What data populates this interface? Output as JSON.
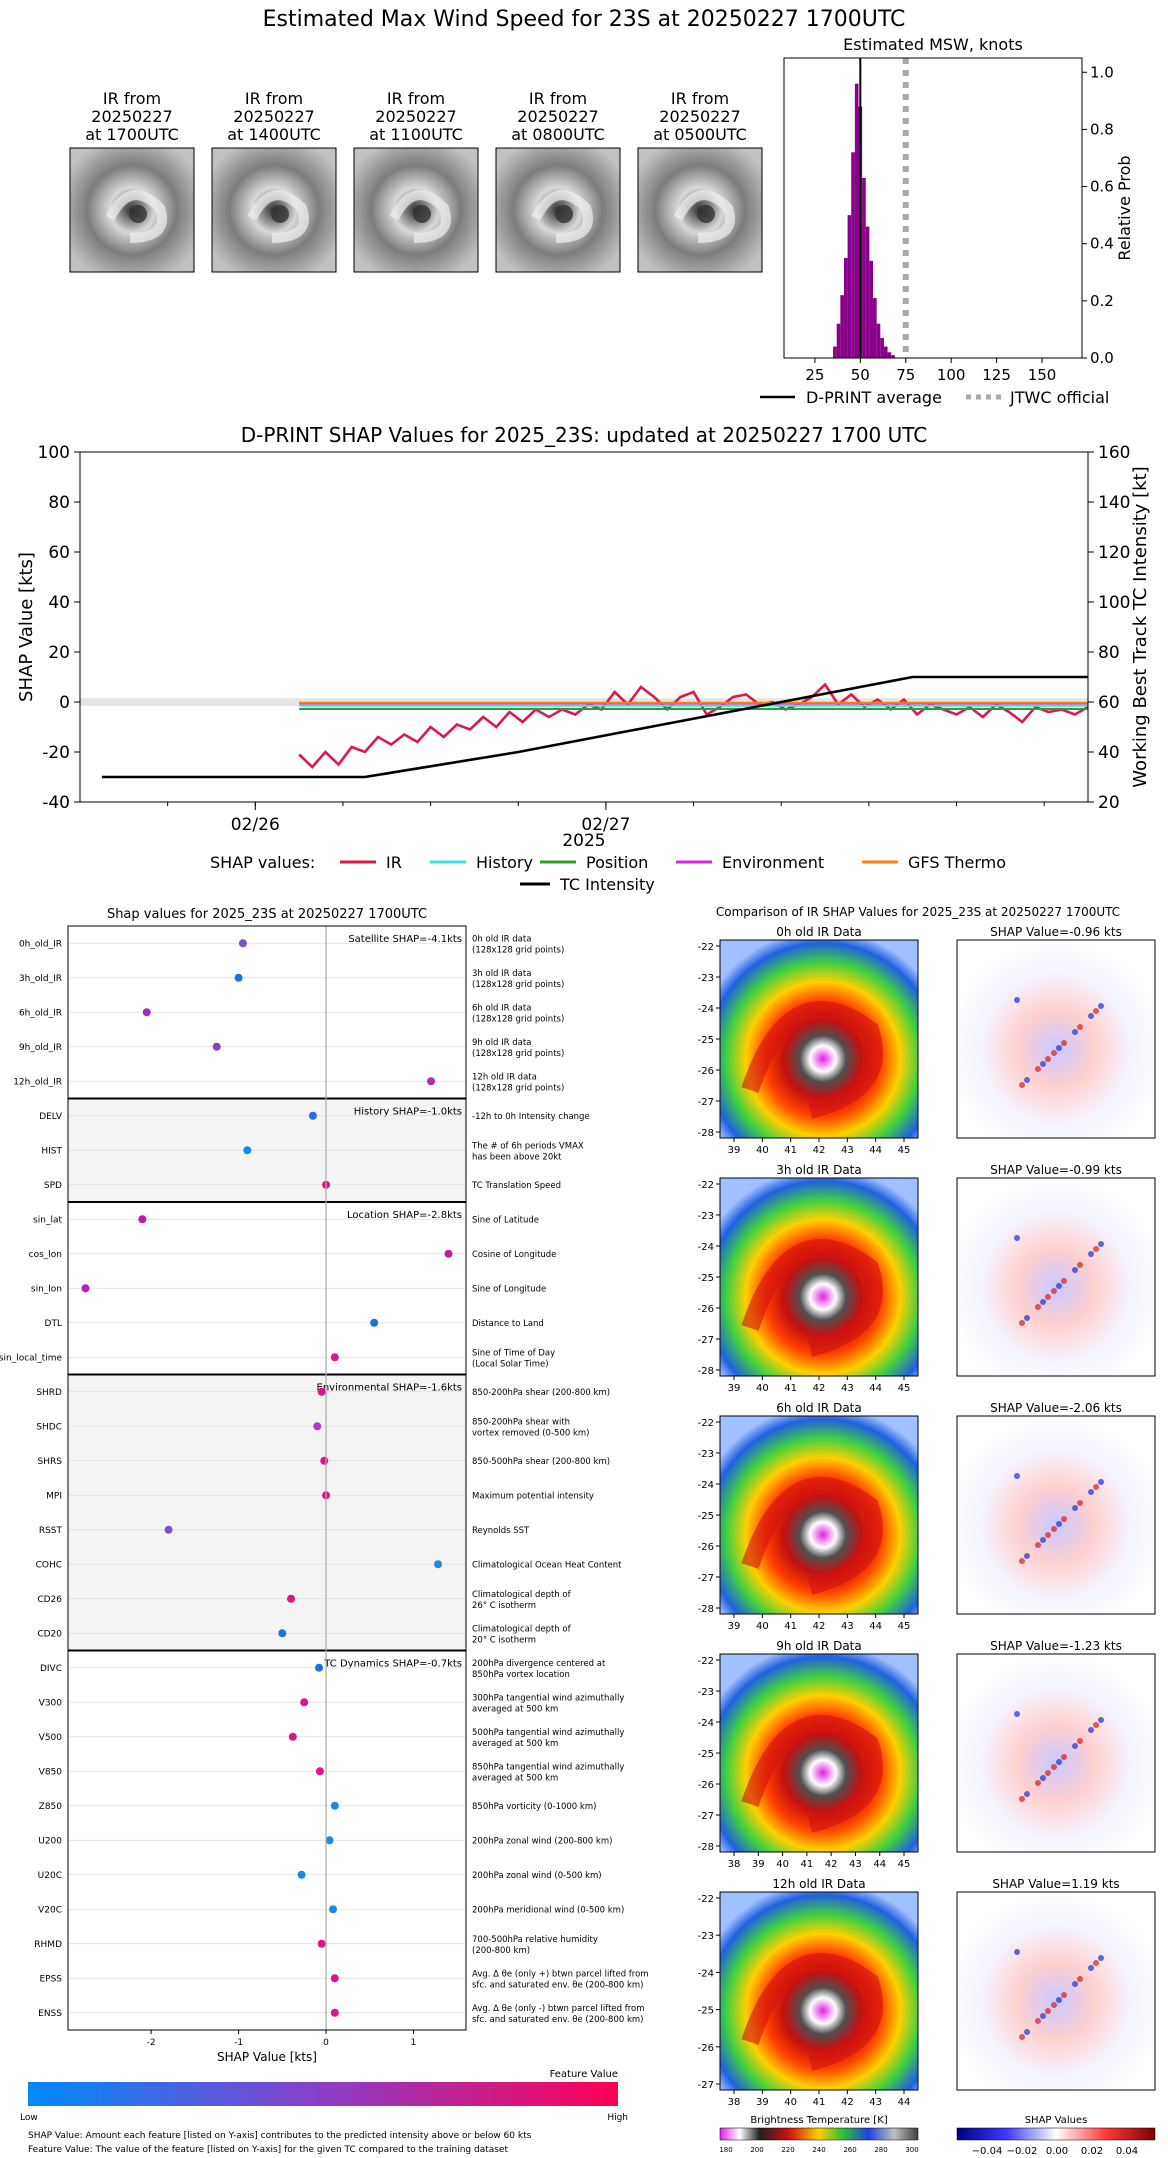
{
  "title": "Estimated Max Wind Speed for 23S at 20250227 1700UTC",
  "ir_thumbs": [
    {
      "line1": "IR from",
      "line2": "20250227",
      "line3": "at 1700UTC"
    },
    {
      "line1": "IR from",
      "line2": "20250227",
      "line3": "at 1400UTC"
    },
    {
      "line1": "IR from",
      "line2": "20250227",
      "line3": "at 1100UTC"
    },
    {
      "line1": "IR from",
      "line2": "20250227",
      "line3": "at 0800UTC"
    },
    {
      "line1": "IR from",
      "line2": "20250227",
      "line3": "at 0500UTC"
    }
  ],
  "legend_top": {
    "davg": "D-PRINT average",
    "jtwc": "JTWC official"
  },
  "shap_legend": {
    "label": "SHAP values:",
    "items": [
      {
        "name": "IR",
        "color": "#d81b4a"
      },
      {
        "name": "History",
        "color": "#40e0e0"
      },
      {
        "name": "Position",
        "color": "#2ca02c"
      },
      {
        "name": "Environment",
        "color": "#e020e0"
      },
      {
        "name": "GFS Thermo",
        "color": "#ff7f0e"
      }
    ],
    "tc": "TC Intensity"
  },
  "summary": {
    "title": "Shap values for 2025_23S at 20250227 1700UTC",
    "xlabel": "SHAP Value [kts]",
    "xticks": [
      "-2",
      "-1",
      "0",
      "1"
    ],
    "groups": [
      {
        "title": "Satellite SHAP=-4.1kts",
        "shaded": false,
        "features": [
          {
            "name": "0h_old_IR",
            "value": -0.95,
            "color": "#7b4fcf",
            "desc1": "0h old IR data",
            "desc2": "(128x128 grid points)"
          },
          {
            "name": "3h_old_IR",
            "value": -1.0,
            "color": "#1a73e0",
            "desc1": "3h old IR data",
            "desc2": "(128x128 grid points)"
          },
          {
            "name": "6h_old_IR",
            "value": -2.05,
            "color": "#9e2cc0",
            "desc1": "6h old IR data",
            "desc2": "(128x128 grid points)"
          },
          {
            "name": "9h_old_IR",
            "value": -1.25,
            "color": "#8a3fc8",
            "desc1": "9h old IR data",
            "desc2": "(128x128 grid points)"
          },
          {
            "name": "12h_old_IR",
            "value": 1.2,
            "color": "#b52ab0",
            "desc1": "12h old IR data",
            "desc2": "(128x128 grid points)"
          }
        ]
      },
      {
        "title": "History SHAP=-1.0kts",
        "shaded": true,
        "features": [
          {
            "name": "DELV",
            "value": -0.15,
            "color": "#1a73e0",
            "desc1": "-12h to 0h Intensity change",
            "desc2": ""
          },
          {
            "name": "HIST",
            "value": -0.9,
            "color": "#1a8ae8",
            "desc1": "The # of 6h periods VMAX",
            "desc2": "has been above 20kt"
          },
          {
            "name": "SPD",
            "value": 0.0,
            "color": "#e0148a",
            "desc1": "TC Translation Speed",
            "desc2": ""
          }
        ]
      },
      {
        "title": "Location SHAP=-2.8kts",
        "shaded": false,
        "features": [
          {
            "name": "sin_lat",
            "value": -2.1,
            "color": "#c01ab0",
            "desc1": "Sine of Latitude",
            "desc2": ""
          },
          {
            "name": "cos_lon",
            "value": 1.4,
            "color": "#c01ab0",
            "desc1": "Cosine of Longitude",
            "desc2": ""
          },
          {
            "name": "sin_lon",
            "value": -2.75,
            "color": "#c01ab0",
            "desc1": "Sine of Longitude",
            "desc2": ""
          },
          {
            "name": "DTL",
            "value": 0.55,
            "color": "#1a73e0",
            "desc1": "Distance to Land",
            "desc2": ""
          },
          {
            "name": "sin_local_time",
            "value": 0.1,
            "color": "#d418a0",
            "desc1": "Sine of Time of Day",
            "desc2": "(Local Solar Time)"
          }
        ]
      },
      {
        "title": "Environmental SHAP=-1.6kts",
        "shaded": true,
        "features": [
          {
            "name": "SHRD",
            "value": -0.05,
            "color": "#e0148a",
            "desc1": "850-200hPa shear (200-800 km)",
            "desc2": ""
          },
          {
            "name": "SHDC",
            "value": -0.1,
            "color": "#a83cc8",
            "desc1": "850-200hPa shear with",
            "desc2": "vortex removed (0-500 km)"
          },
          {
            "name": "SHRS",
            "value": -0.02,
            "color": "#e0148a",
            "desc1": "850-500hPa shear (200-800 km)",
            "desc2": ""
          },
          {
            "name": "MPI",
            "value": 0.0,
            "color": "#e0148a",
            "desc1": "Maximum potential intensity",
            "desc2": ""
          },
          {
            "name": "RSST",
            "value": -1.8,
            "color": "#7b4fcf",
            "desc1": "Reynolds SST",
            "desc2": ""
          },
          {
            "name": "COHC",
            "value": 1.28,
            "color": "#1a8ae8",
            "desc1": "Climatological Ocean Heat Content",
            "desc2": ""
          },
          {
            "name": "CD26",
            "value": -0.4,
            "color": "#d8187e",
            "desc1": "Climatological depth of",
            "desc2": "26° C isotherm"
          },
          {
            "name": "CD20",
            "value": -0.5,
            "color": "#1a73e0",
            "desc1": "Climatological depth of",
            "desc2": "20° C isotherm"
          }
        ]
      },
      {
        "title": "TC Dynamics SHAP=-0.7kts",
        "shaded": false,
        "features": [
          {
            "name": "DIVC",
            "value": -0.08,
            "color": "#1a73e0",
            "desc1": "200hPa divergence centered at",
            "desc2": "850hPa vortex location"
          },
          {
            "name": "V300",
            "value": -0.25,
            "color": "#e0148a",
            "desc1": "300hPa tangential wind azimuthally",
            "desc2": "averaged at 500 km"
          },
          {
            "name": "V500",
            "value": -0.38,
            "color": "#d41890",
            "desc1": "500hPa tangential wind azimuthally",
            "desc2": "averaged at 500 km"
          },
          {
            "name": "V850",
            "value": -0.07,
            "color": "#e0148a",
            "desc1": "850hPa tangential wind azimuthally",
            "desc2": "averaged at 500 km"
          },
          {
            "name": "Z850",
            "value": 0.1,
            "color": "#1a8ae8",
            "desc1": "850hPa vorticity (0-1000 km)",
            "desc2": ""
          },
          {
            "name": "U200",
            "value": 0.04,
            "color": "#1a8ae8",
            "desc1": "200hPa zonal wind (200-800 km)",
            "desc2": ""
          },
          {
            "name": "U20C",
            "value": -0.28,
            "color": "#1a8ae8",
            "desc1": "200hPa zonal wind (0-500 km)",
            "desc2": ""
          },
          {
            "name": "V20C",
            "value": 0.08,
            "color": "#1a8ae8",
            "desc1": "200hPa meridional wind (0-500 km)",
            "desc2": ""
          },
          {
            "name": "RHMD",
            "value": -0.05,
            "color": "#e0148a",
            "desc1": "700-500hPa relative humidity",
            "desc2": "(200-800 km)"
          },
          {
            "name": "EPSS",
            "value": 0.1,
            "color": "#e0148a",
            "desc1": "Avg. Δ θe (only +) btwn parcel lifted from",
            "desc2": "sfc. and saturated env. θe (200-800 km)"
          },
          {
            "name": "ENSS",
            "value": 0.1,
            "color": "#e0148a",
            "desc1": "Avg. Δ θe (only -) btwn parcel lifted from",
            "desc2": "sfc. and saturated env. θe (200-800 km)"
          }
        ]
      }
    ],
    "colorbar": {
      "title": "Feature Value",
      "low": "Low",
      "high": "High"
    },
    "footnote1": "SHAP Value: Amount each feature [listed on Y-axis] contributes to the predicted intensity above or below 60 kts",
    "footnote2": "Feature Value: The value of the feature [listed on Y-axis] for the given TC compared to the training dataset"
  },
  "comparison": {
    "title": "Comparison of IR SHAP Values for 2025_23S at 20250227 1700UTC",
    "rows": [
      {
        "ir_title": "0h old IR Data",
        "shap_title": "SHAP Value=-0.96 kts",
        "yticks": [
          "-22",
          "-23",
          "-24",
          "-25",
          "-26",
          "-27",
          "-28"
        ],
        "xticks": [
          "39",
          "40",
          "41",
          "42",
          "43",
          "44",
          "45"
        ]
      },
      {
        "ir_title": "3h old IR Data",
        "shap_title": "SHAP Value=-0.99 kts",
        "yticks": [
          "-22",
          "-23",
          "-24",
          "-25",
          "-26",
          "-27",
          "-28"
        ],
        "xticks": [
          "39",
          "40",
          "41",
          "42",
          "43",
          "44",
          "45"
        ]
      },
      {
        "ir_title": "6h old IR Data",
        "shap_title": "SHAP Value=-2.06 kts",
        "yticks": [
          "-22",
          "-23",
          "-24",
          "-25",
          "-26",
          "-27",
          "-28"
        ],
        "xticks": [
          "39",
          "40",
          "41",
          "42",
          "43",
          "44",
          "45"
        ]
      },
      {
        "ir_title": "9h old IR Data",
        "shap_title": "SHAP Value=-1.23 kts",
        "yticks": [
          "-22",
          "-23",
          "-24",
          "-25",
          "-26",
          "-27",
          "-28"
        ],
        "xticks": [
          "38",
          "39",
          "40",
          "41",
          "42",
          "43",
          "44",
          "45"
        ]
      },
      {
        "ir_title": "12h old IR Data",
        "shap_title": "SHAP Value=1.19 kts",
        "yticks": [
          "-22",
          "-23",
          "-24",
          "-25",
          "-26",
          "-27"
        ],
        "xticks": [
          "38",
          "39",
          "40",
          "41",
          "42",
          "43",
          "44"
        ]
      }
    ],
    "bt_title": "Brightness Temperature [K]",
    "bt_ticks": [
      "180",
      "200",
      "220",
      "240",
      "260",
      "280",
      "300"
    ],
    "sv_title": "SHAP Values",
    "sv_ticks": [
      "−0.04",
      "−0.02",
      "0.00",
      "0.02",
      "0.04"
    ]
  },
  "chart_data": [
    {
      "type": "bar",
      "title": "Estimated MSW, knots",
      "ylabel": "Relative Prob",
      "xticks": [
        25,
        50,
        75,
        100,
        125,
        150
      ],
      "yticks": [
        0.0,
        0.2,
        0.4,
        0.6,
        0.8,
        1.0
      ],
      "xlim": [
        8,
        172
      ],
      "ylim": [
        0,
        1.05
      ],
      "bin_width": 2,
      "bins": [
        {
          "x": 36,
          "y": 0.04
        },
        {
          "x": 38,
          "y": 0.12
        },
        {
          "x": 40,
          "y": 0.22
        },
        {
          "x": 42,
          "y": 0.35
        },
        {
          "x": 44,
          "y": 0.5
        },
        {
          "x": 46,
          "y": 0.72
        },
        {
          "x": 48,
          "y": 0.96
        },
        {
          "x": 50,
          "y": 0.88
        },
        {
          "x": 52,
          "y": 0.63
        },
        {
          "x": 54,
          "y": 0.46
        },
        {
          "x": 56,
          "y": 0.34
        },
        {
          "x": 58,
          "y": 0.21
        },
        {
          "x": 60,
          "y": 0.12
        },
        {
          "x": 62,
          "y": 0.07
        },
        {
          "x": 64,
          "y": 0.04
        },
        {
          "x": 66,
          "y": 0.02
        },
        {
          "x": 68,
          "y": 0.01
        }
      ],
      "dprint_average": 50,
      "jtwc_official": 75
    },
    {
      "type": "line",
      "title": "D-PRINT SHAP Values for 2025_23S: updated at 20250227 1700 UTC",
      "xlabel": "2025",
      "ylabel": "SHAP Value [kts]",
      "y2label": "Working Best Track TC Intensity [kt]",
      "xticks": [
        "02/26",
        "02/27"
      ],
      "xlim": [
        -2.0,
        21.0
      ],
      "ylim": [
        -40,
        100
      ],
      "y2lim": [
        20,
        160
      ],
      "yticks": [
        -40,
        -20,
        0,
        20,
        40,
        60,
        80,
        100
      ],
      "y2ticks": [
        20,
        40,
        60,
        80,
        100,
        120,
        140,
        160
      ],
      "series": [
        {
          "name": "IR",
          "x": [
            3.0,
            3.3,
            3.6,
            3.9,
            4.2,
            4.5,
            4.8,
            5.1,
            5.4,
            5.7,
            6.0,
            6.3,
            6.6,
            6.9,
            7.2,
            7.5,
            7.8,
            8.1,
            8.4,
            8.7,
            9.0,
            9.3,
            9.6,
            9.9,
            10.2,
            10.5,
            10.8,
            11.1,
            11.4,
            11.7,
            12.0,
            12.3,
            12.6,
            12.9,
            13.2,
            13.5,
            13.8,
            14.1,
            14.4,
            14.7,
            15.0,
            15.3,
            15.6,
            15.9,
            16.2,
            16.5,
            16.8,
            17.1,
            17.4,
            17.7,
            18.0,
            18.3,
            18.6,
            18.9,
            19.2,
            19.5,
            19.8,
            20.1,
            20.4,
            20.7,
            21.0
          ],
          "y": [
            -21,
            -26,
            -20,
            -25,
            -18,
            -20,
            -14,
            -17,
            -13,
            -16,
            -10,
            -14,
            -9,
            -11,
            -6,
            -10,
            -4,
            -8,
            -3,
            -6,
            -3,
            -5,
            -1,
            -3,
            4,
            -1,
            6,
            2,
            -3,
            2,
            4,
            -5,
            -2,
            2,
            3,
            -1,
            0,
            -3,
            -1,
            2,
            7,
            -1,
            3,
            -2,
            1,
            -3,
            1,
            -5,
            -1,
            -3,
            -5,
            -2,
            -6,
            -1,
            -4,
            -8,
            -2,
            -4,
            -3,
            -5,
            -2
          ]
        },
        {
          "name": "History",
          "x": [
            3,
            21
          ],
          "y": [
            -1.5,
            -1.5
          ]
        },
        {
          "name": "Position",
          "x": [
            3,
            21
          ],
          "y": [
            -2.8,
            -2.8
          ]
        },
        {
          "name": "Environment",
          "x": [
            3,
            21
          ],
          "y": [
            -0.6,
            -0.6
          ]
        },
        {
          "name": "GFS Thermo",
          "x": [
            3,
            21
          ],
          "y": [
            -0.3,
            -0.3
          ]
        },
        {
          "name": "TC Intensity",
          "axis": "right",
          "x": [
            -1.5,
            4.5,
            8.0,
            17.0,
            21.0
          ],
          "y": [
            30,
            30,
            40,
            70,
            70
          ]
        }
      ],
      "xtick_positions": [
        2,
        10
      ]
    }
  ]
}
